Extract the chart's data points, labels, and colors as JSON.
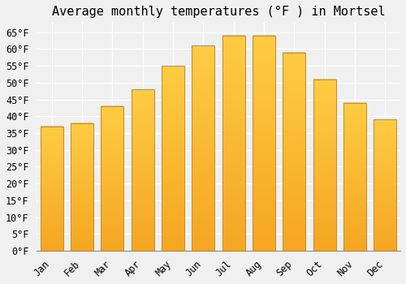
{
  "categories": [
    "Jan",
    "Feb",
    "Mar",
    "Apr",
    "May",
    "Jun",
    "Jul",
    "Aug",
    "Sep",
    "Oct",
    "Nov",
    "Dec"
  ],
  "values": [
    37,
    38,
    43,
    48,
    55,
    61,
    64,
    64,
    59,
    51,
    44,
    39
  ],
  "bar_color_top": "#FFCC44",
  "bar_color_bottom": "#F5A623",
  "bar_edge_color": "#C8922A",
  "title": "Average monthly temperatures (°F ) in Mortsel",
  "ylim": [
    0,
    68
  ],
  "ytick_step": 5,
  "background_color": "#f0f0f0",
  "grid_color": "#ffffff",
  "title_fontsize": 11,
  "tick_fontsize": 8.5,
  "font_family": "monospace"
}
